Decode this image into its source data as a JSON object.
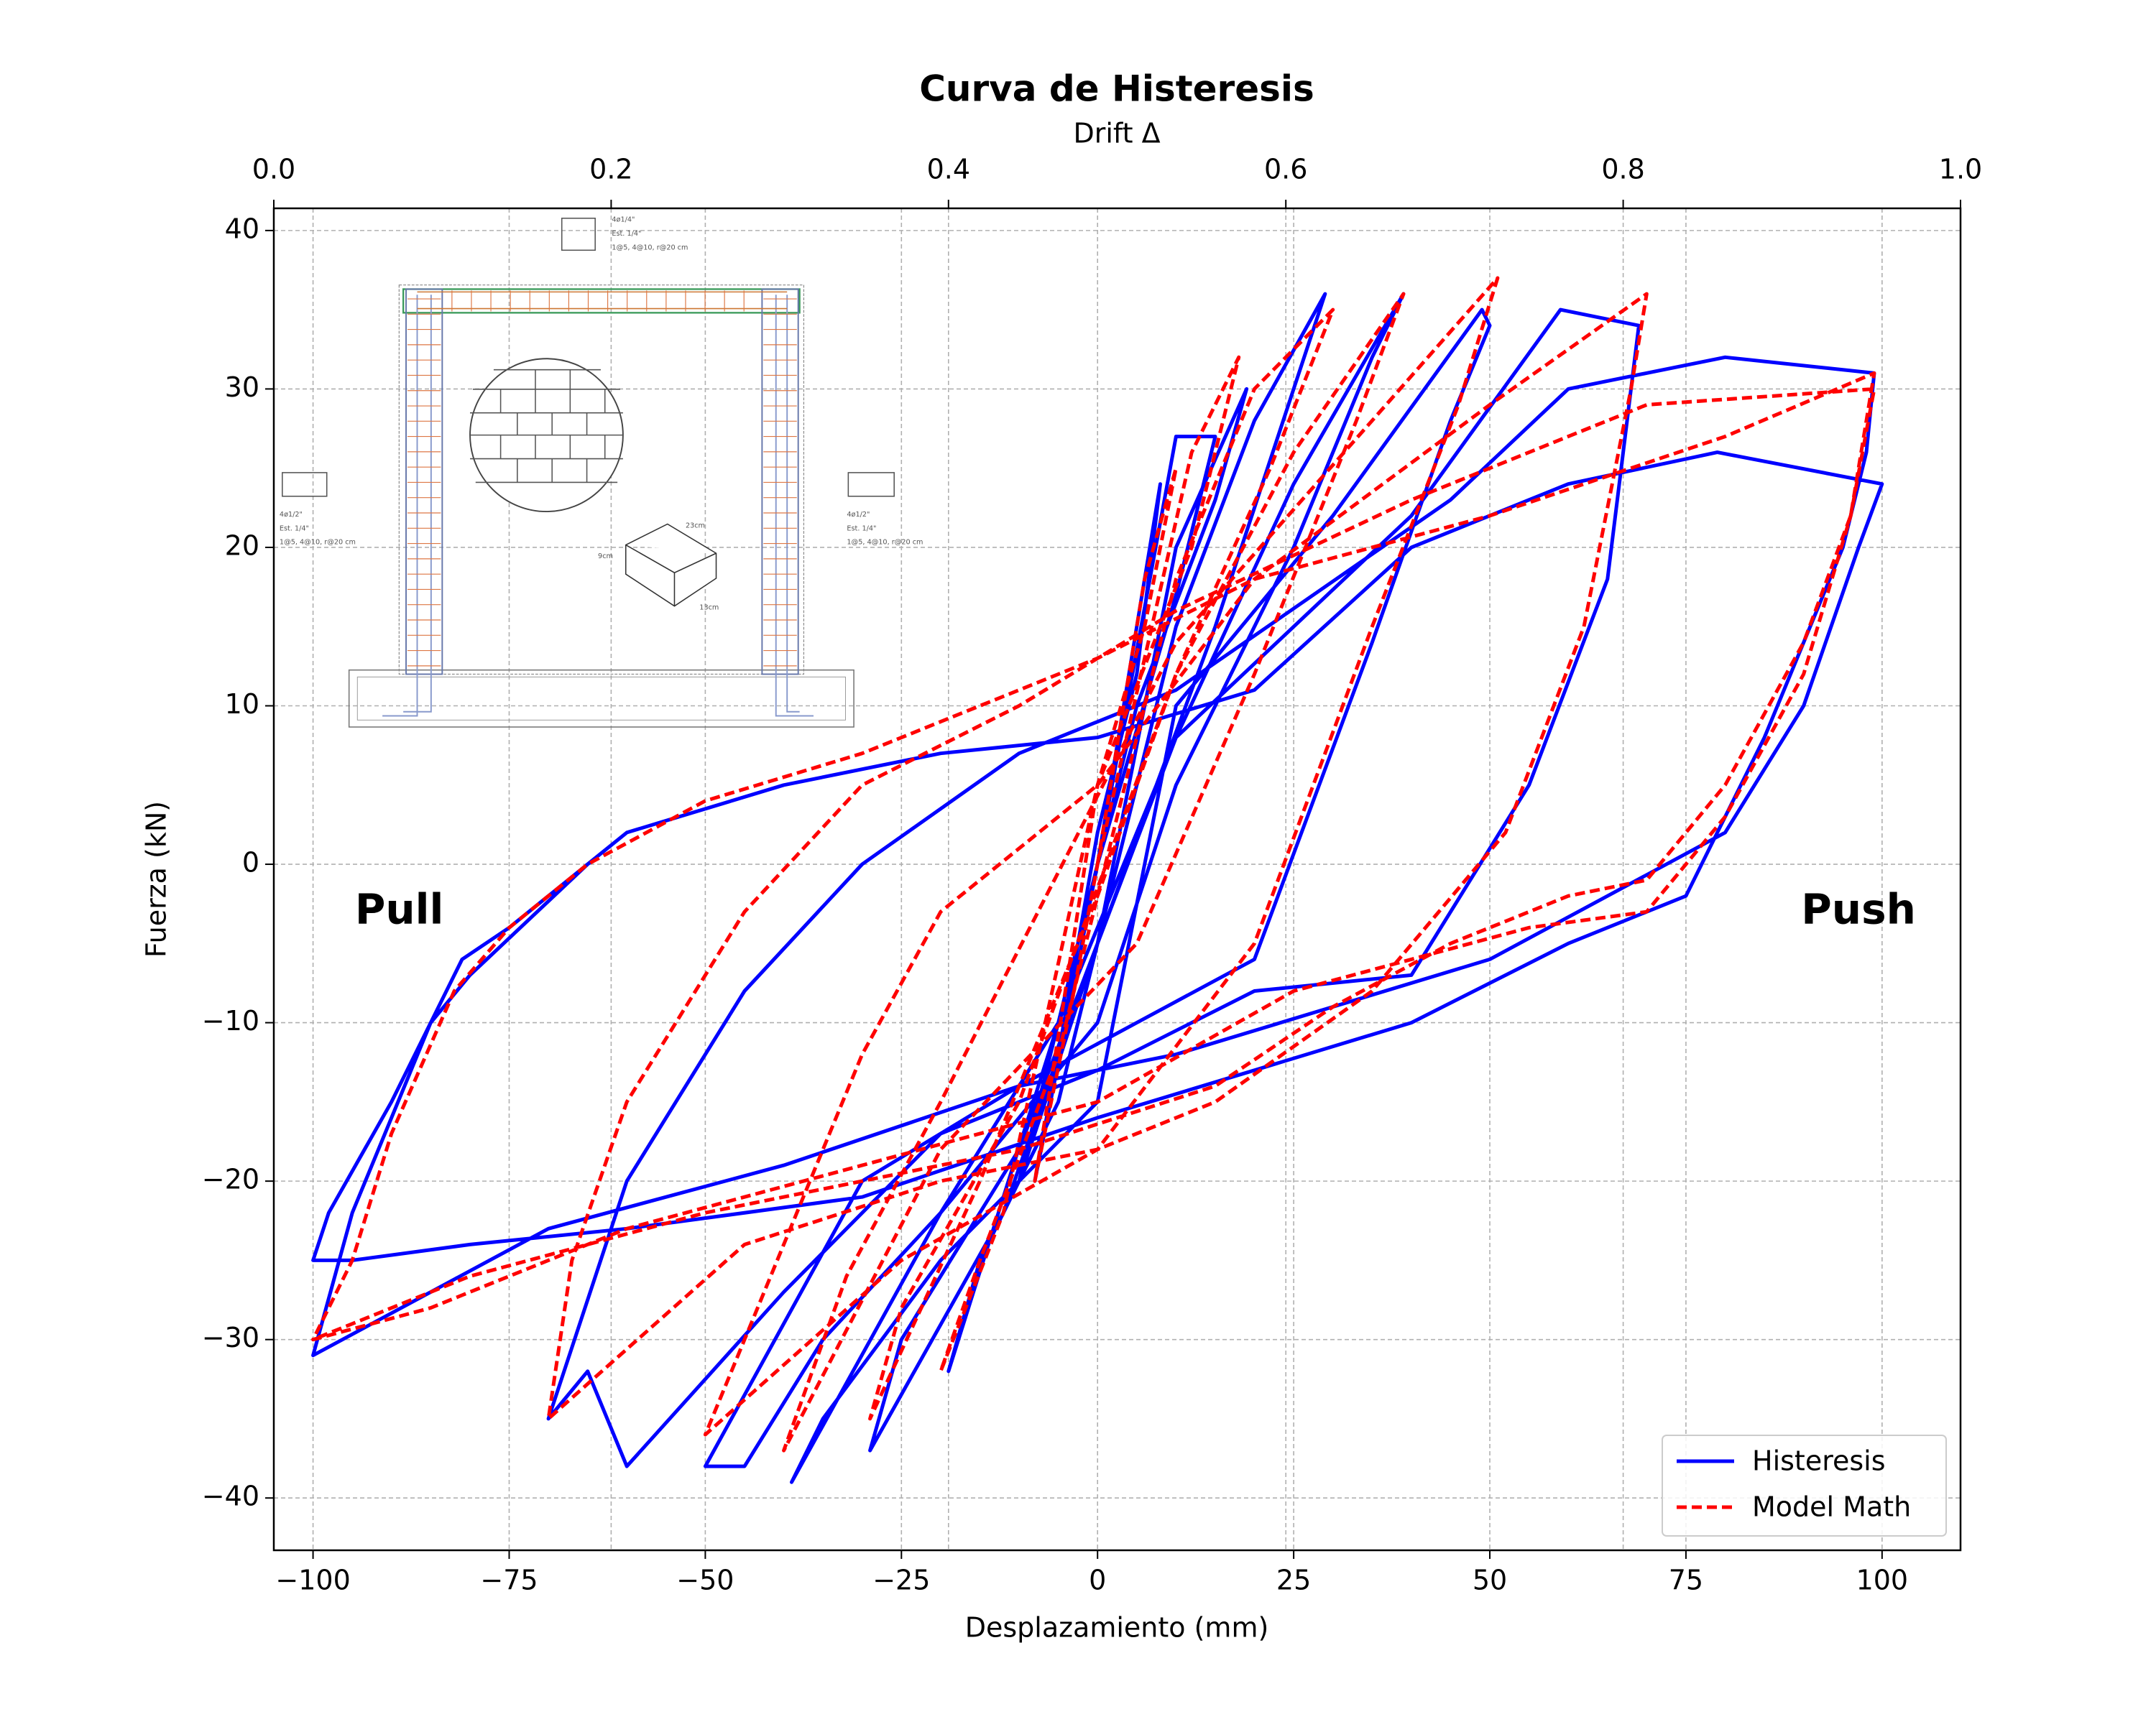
{
  "chart_data": {
    "type": "line",
    "title": "Curva de Histeresis",
    "x_label": "Desplazamiento (mm)",
    "y_label": "Fuerza (kN)",
    "x2_label": "Drift Δ",
    "xlim": [
      -105,
      110
    ],
    "ylim": [
      -43.3,
      41.4
    ],
    "x2lim": [
      0,
      1
    ],
    "xticks": [
      {
        "value": -100,
        "label": "−100"
      },
      {
        "value": -75,
        "label": "−75"
      },
      {
        "value": -50,
        "label": "−50"
      },
      {
        "value": -25,
        "label": "−25"
      },
      0,
      25,
      50,
      75,
      100
    ],
    "yticks": [
      {
        "value": -40,
        "label": "−40"
      },
      {
        "value": -30,
        "label": "−30"
      },
      {
        "value": -20,
        "label": "−20"
      },
      {
        "value": -10,
        "label": "−10"
      },
      0,
      10,
      20,
      30,
      40
    ],
    "x2ticks": [
      {
        "value": 0,
        "label": "0.0"
      },
      0.2,
      0.4,
      0.6,
      0.8,
      {
        "value": 1,
        "label": "1.0"
      }
    ],
    "grid": true,
    "legend": "lower right",
    "annotations": [
      {
        "text": "Pull",
        "x": -89,
        "y": -3,
        "color": "#ff0000"
      },
      {
        "text": "Push",
        "x": 97,
        "y": -3,
        "color": "#ff0000"
      }
    ],
    "inset_labels": [
      "4ø1/4\"",
      "Est. 1/4\"",
      "1@5, 4@10, r@20 cm",
      "4ø1/2\"",
      "Est. 1/4\"",
      "1@5, 4@10, r@20 cm",
      "4ø1/2\"",
      "Est. 1/4\"",
      "1@5, 4@10, r@20 cm",
      "23cm",
      "9cm",
      "13cm"
    ],
    "series": [
      {
        "name": "Histeresis",
        "color": "#0000ff",
        "dash": false,
        "x": [
          0,
          5,
          8,
          5,
          0,
          -5,
          -8,
          -4,
          0,
          10,
          15,
          10,
          0,
          -10,
          -15,
          -10,
          0,
          10,
          19,
          15,
          5,
          -5,
          -19,
          -15,
          -5,
          10,
          20,
          29,
          25,
          15,
          0,
          -12,
          -29,
          -25,
          -10,
          10,
          25,
          39,
          35,
          25,
          10,
          0,
          -20,
          -39,
          -35,
          -20,
          0,
          10,
          30,
          49,
          50,
          45,
          35,
          20,
          5,
          -10,
          -30,
          -50,
          -45,
          -35,
          -20,
          -5,
          10,
          40,
          59,
          69,
          65,
          55,
          40,
          20,
          0,
          -20,
          -40,
          -60,
          -65,
          -70,
          -60,
          -45,
          -30,
          -10,
          10,
          45,
          60,
          80,
          99,
          98,
          95,
          85,
          75,
          60,
          40,
          20,
          0,
          -30,
          -60,
          -80,
          -95,
          -100,
          -98,
          -90,
          -81,
          -75,
          -65,
          -60,
          -40,
          -20,
          0,
          20,
          40,
          60,
          79,
          100,
          97,
          90,
          80,
          65,
          50,
          30,
          10,
          -10,
          -40,
          -70,
          -100,
          -95,
          -85,
          -80,
          -65,
          -60
        ],
        "values": [
          0,
          15,
          24,
          12,
          2,
          -12,
          -20,
          -10,
          0,
          27,
          27,
          17,
          0,
          -20,
          -25,
          -20,
          -5,
          20,
          30,
          23,
          10,
          -10,
          -32,
          -25,
          -15,
          15,
          28,
          36,
          30,
          15,
          -5,
          -22,
          -37,
          -30,
          -18,
          8,
          24,
          36,
          32,
          20,
          5,
          -10,
          -22,
          -39,
          -35,
          -25,
          -15,
          10,
          22,
          35,
          34,
          28,
          14,
          -6,
          -10,
          -14,
          -20,
          -38,
          -38,
          -30,
          -22,
          -10,
          8,
          22,
          35,
          34,
          18,
          5,
          -7,
          -8,
          -13,
          -17,
          -27,
          -38,
          -32,
          -35,
          -20,
          -8,
          0,
          7,
          11,
          23,
          30,
          32,
          31,
          26,
          20,
          8,
          -2,
          -5,
          -10,
          -13,
          -16,
          -21,
          -23,
          -24,
          -25,
          -25,
          -22,
          -15,
          -6,
          -4,
          0,
          2,
          5,
          7,
          8,
          11,
          20,
          24,
          26,
          24,
          20,
          10,
          2,
          -2,
          -6,
          -9,
          -12,
          -14,
          -19,
          -23,
          -31,
          -22,
          -10,
          -7,
          0,
          2
        ]
      },
      {
        "name": "Model Math",
        "color": "#ff0000",
        "dash": true,
        "x": [
          0,
          6,
          10,
          6,
          0,
          -6,
          -8,
          -3,
          0,
          12,
          18,
          12,
          0,
          -12,
          -20,
          -15,
          -5,
          10,
          20,
          30,
          22,
          10,
          0,
          -15,
          -29,
          -25,
          -10,
          10,
          25,
          39,
          33,
          20,
          5,
          -20,
          -40,
          -32,
          -20,
          10,
          35,
          51,
          46,
          35,
          20,
          0,
          -25,
          -50,
          -45,
          -30,
          -20,
          0,
          20,
          50,
          70,
          68,
          62,
          52,
          35,
          15,
          0,
          -20,
          -45,
          -70,
          -67,
          -60,
          -45,
          -30,
          -10,
          10,
          40,
          70,
          99,
          96,
          90,
          80,
          70,
          55,
          40,
          25,
          0,
          -30,
          -60,
          -85,
          -100,
          -95,
          -90,
          -82,
          -75,
          -65,
          -50,
          -30,
          -10,
          0,
          20,
          50,
          80,
          99,
          96,
          90,
          80,
          70,
          60,
          45,
          30,
          15,
          -10,
          -50,
          -80,
          -100
        ],
        "values": [
          0,
          18,
          25,
          15,
          5,
          -14,
          -20,
          -8,
          0,
          26,
          32,
          20,
          5,
          -22,
          -32,
          -25,
          -12,
          18,
          30,
          35,
          25,
          12,
          -2,
          -20,
          -35,
          -28,
          -15,
          12,
          26,
          36,
          28,
          12,
          -5,
          -18,
          -37,
          -26,
          -15,
          14,
          28,
          37,
          29,
          15,
          -5,
          -18,
          -25,
          -36,
          -30,
          -12,
          -3,
          5,
          18,
          29,
          36,
          30,
          15,
          2,
          -8,
          -15,
          -18,
          -20,
          -24,
          -35,
          -25,
          -15,
          -3,
          5,
          10,
          16,
          23,
          29,
          30,
          22,
          12,
          3,
          -3,
          -4,
          -6,
          -8,
          -15,
          -19,
          -23,
          -28,
          -30,
          -25,
          -17,
          -8,
          -4,
          0,
          4,
          7,
          11,
          13,
          18,
          22,
          27,
          31,
          22,
          14,
          5,
          -1,
          -2,
          -5,
          -9,
          -14,
          -18,
          -22,
          -26,
          -30
        ]
      }
    ]
  }
}
